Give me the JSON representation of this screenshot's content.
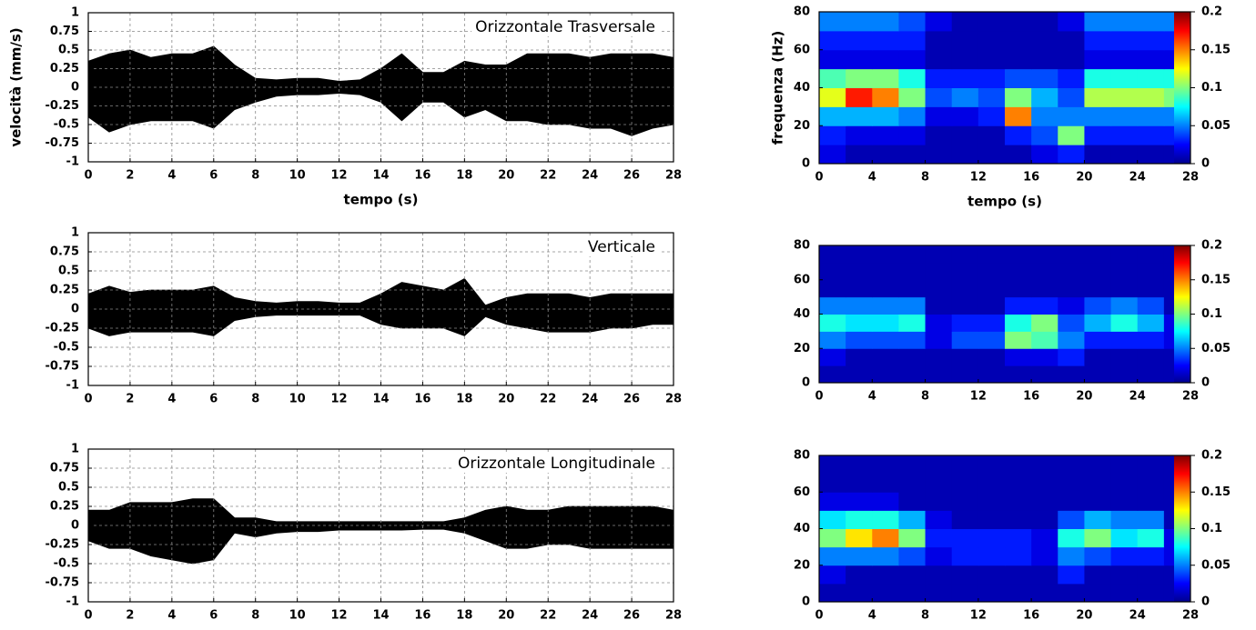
{
  "chart_data": [
    {
      "type": "band",
      "title": "Orizzontale Trasversale",
      "ylabel": "velocità (mm/s)",
      "xlabel": "tempo (s)",
      "color": "#000000",
      "grid": true,
      "x": [
        0,
        1,
        2,
        3,
        4,
        5,
        6,
        7,
        8,
        9,
        10,
        11,
        12,
        13,
        14,
        15,
        16,
        17,
        18,
        19,
        20,
        21,
        22,
        23,
        24,
        25,
        26,
        27,
        28
      ],
      "high": [
        0.35,
        0.45,
        0.5,
        0.4,
        0.45,
        0.45,
        0.55,
        0.3,
        0.12,
        0.1,
        0.12,
        0.12,
        0.08,
        0.1,
        0.25,
        0.45,
        0.2,
        0.2,
        0.35,
        0.3,
        0.3,
        0.45,
        0.45,
        0.45,
        0.4,
        0.45,
        0.45,
        0.45,
        0.4
      ],
      "low": [
        -0.4,
        -0.6,
        -0.5,
        -0.45,
        -0.45,
        -0.45,
        -0.55,
        -0.3,
        -0.2,
        -0.12,
        -0.1,
        -0.1,
        -0.08,
        -0.1,
        -0.2,
        -0.45,
        -0.2,
        -0.2,
        -0.4,
        -0.3,
        -0.45,
        -0.45,
        -0.5,
        -0.5,
        -0.55,
        -0.55,
        -0.65,
        -0.55,
        -0.5
      ],
      "xlim": [
        0,
        28
      ],
      "ylim": [
        -1,
        1
      ],
      "xticks": [
        0,
        2,
        4,
        6,
        8,
        10,
        12,
        14,
        16,
        18,
        20,
        22,
        24,
        26,
        28
      ],
      "yticks": [
        1,
        0.75,
        0.5,
        0.25,
        0,
        -0.25,
        -0.5,
        -0.75,
        -1
      ]
    },
    {
      "type": "band",
      "title": "Verticale",
      "color": "#000000",
      "grid": true,
      "x": [
        0,
        1,
        2,
        3,
        4,
        5,
        6,
        7,
        8,
        9,
        10,
        11,
        12,
        13,
        14,
        15,
        16,
        17,
        18,
        19,
        20,
        21,
        22,
        23,
        24,
        25,
        26,
        27,
        28
      ],
      "high": [
        0.2,
        0.3,
        0.22,
        0.25,
        0.25,
        0.25,
        0.3,
        0.15,
        0.1,
        0.08,
        0.1,
        0.1,
        0.08,
        0.08,
        0.2,
        0.35,
        0.3,
        0.25,
        0.4,
        0.05,
        0.15,
        0.2,
        0.2,
        0.2,
        0.15,
        0.2,
        0.2,
        0.2,
        0.2
      ],
      "low": [
        -0.25,
        -0.35,
        -0.3,
        -0.3,
        -0.3,
        -0.3,
        -0.35,
        -0.15,
        -0.1,
        -0.08,
        -0.08,
        -0.08,
        -0.08,
        -0.08,
        -0.2,
        -0.25,
        -0.25,
        -0.25,
        -0.35,
        -0.1,
        -0.2,
        -0.25,
        -0.3,
        -0.3,
        -0.3,
        -0.25,
        -0.25,
        -0.2,
        -0.2
      ],
      "xlim": [
        0,
        28
      ],
      "ylim": [
        -1,
        1
      ],
      "xticks": [
        0,
        2,
        4,
        6,
        8,
        10,
        12,
        14,
        16,
        18,
        20,
        22,
        24,
        26,
        28
      ],
      "yticks": [
        1,
        0.75,
        0.5,
        0.25,
        0,
        -0.25,
        -0.5,
        -0.75,
        -1
      ]
    },
    {
      "type": "band",
      "title": "Orizzontale Longitudinale",
      "color": "#000000",
      "grid": true,
      "x": [
        0,
        1,
        2,
        3,
        4,
        5,
        6,
        7,
        8,
        9,
        10,
        11,
        12,
        13,
        14,
        15,
        16,
        17,
        18,
        19,
        20,
        21,
        22,
        23,
        24,
        25,
        26,
        27,
        28
      ],
      "high": [
        0.2,
        0.2,
        0.3,
        0.3,
        0.3,
        0.35,
        0.35,
        0.1,
        0.1,
        0.05,
        0.05,
        0.05,
        0.05,
        0.05,
        0.05,
        0.05,
        0.05,
        0.05,
        0.1,
        0.2,
        0.25,
        0.2,
        0.2,
        0.25,
        0.25,
        0.25,
        0.25,
        0.25,
        0.2
      ],
      "low": [
        -0.2,
        -0.3,
        -0.3,
        -0.4,
        -0.45,
        -0.5,
        -0.45,
        -0.1,
        -0.15,
        -0.1,
        -0.08,
        -0.08,
        -0.06,
        -0.06,
        -0.06,
        -0.06,
        -0.05,
        -0.05,
        -0.1,
        -0.2,
        -0.3,
        -0.3,
        -0.25,
        -0.25,
        -0.3,
        -0.3,
        -0.3,
        -0.3,
        -0.3
      ],
      "xlim": [
        0,
        28
      ],
      "ylim": [
        -1,
        1
      ],
      "xticks": [
        0,
        2,
        4,
        6,
        8,
        10,
        12,
        14,
        16,
        18,
        20,
        22,
        24,
        26,
        28
      ],
      "yticks": [
        1,
        0.75,
        0.5,
        0.25,
        0,
        -0.25,
        -0.5,
        -0.75,
        -1
      ]
    },
    {
      "type": "heatmap",
      "ylabel": "frequenza (Hz)",
      "xlabel": "tempo (s)",
      "colormap": "jet",
      "xbins": [
        0,
        2,
        4,
        6,
        8,
        10,
        12,
        14,
        16,
        18,
        20,
        22,
        24,
        26,
        28
      ],
      "ybins": [
        0,
        10,
        20,
        30,
        40,
        50,
        60,
        70,
        80
      ],
      "z": [
        [
          0.02,
          0.01,
          0.01,
          0.01,
          0.01,
          0.01,
          0.01,
          0.01,
          0.02,
          0.03,
          0.01,
          0.01,
          0.01,
          0.01
        ],
        [
          0.03,
          0.02,
          0.02,
          0.02,
          0.01,
          0.01,
          0.01,
          0.03,
          0.04,
          0.1,
          0.03,
          0.03,
          0.03,
          0.03
        ],
        [
          0.06,
          0.06,
          0.06,
          0.05,
          0.02,
          0.02,
          0.03,
          0.15,
          0.05,
          0.05,
          0.05,
          0.05,
          0.05,
          0.05
        ],
        [
          0.12,
          0.17,
          0.15,
          0.1,
          0.04,
          0.05,
          0.04,
          0.1,
          0.06,
          0.04,
          0.11,
          0.11,
          0.11,
          0.1
        ],
        [
          0.09,
          0.1,
          0.1,
          0.08,
          0.03,
          0.03,
          0.03,
          0.04,
          0.04,
          0.03,
          0.08,
          0.08,
          0.08,
          0.08
        ],
        [
          0.02,
          0.02,
          0.02,
          0.02,
          0.01,
          0.01,
          0.01,
          0.01,
          0.01,
          0.01,
          0.02,
          0.02,
          0.02,
          0.02
        ],
        [
          0.03,
          0.03,
          0.03,
          0.03,
          0.01,
          0.01,
          0.01,
          0.01,
          0.01,
          0.01,
          0.03,
          0.03,
          0.03,
          0.03
        ],
        [
          0.05,
          0.05,
          0.05,
          0.04,
          0.02,
          0.01,
          0.01,
          0.01,
          0.01,
          0.02,
          0.05,
          0.05,
          0.05,
          0.05
        ]
      ],
      "zlim": [
        0,
        0.2
      ],
      "zticks": [
        0,
        0.05,
        0.1,
        0.15,
        0.2
      ],
      "xlim": [
        0,
        28
      ],
      "ylim": [
        0,
        80
      ],
      "xticks": [
        0,
        4,
        8,
        12,
        16,
        20,
        24,
        28
      ],
      "yticks": [
        0,
        20,
        40,
        60,
        80
      ]
    },
    {
      "type": "heatmap",
      "colormap": "jet",
      "xbins": [
        0,
        2,
        4,
        6,
        8,
        10,
        12,
        14,
        16,
        18,
        20,
        22,
        24,
        26,
        28
      ],
      "ybins": [
        0,
        10,
        20,
        30,
        40,
        50,
        60,
        70,
        80
      ],
      "z": [
        [
          0.01,
          0.01,
          0.01,
          0.01,
          0.01,
          0.01,
          0.01,
          0.01,
          0.01,
          0.01,
          0.01,
          0.01,
          0.01,
          0.01
        ],
        [
          0.02,
          0.01,
          0.01,
          0.01,
          0.01,
          0.01,
          0.01,
          0.02,
          0.02,
          0.03,
          0.01,
          0.01,
          0.01,
          0.01
        ],
        [
          0.05,
          0.04,
          0.04,
          0.04,
          0.02,
          0.04,
          0.04,
          0.1,
          0.09,
          0.05,
          0.03,
          0.03,
          0.03,
          0.02
        ],
        [
          0.08,
          0.07,
          0.07,
          0.08,
          0.02,
          0.03,
          0.03,
          0.08,
          0.1,
          0.04,
          0.06,
          0.08,
          0.06,
          0.02
        ],
        [
          0.05,
          0.05,
          0.05,
          0.05,
          0.01,
          0.01,
          0.01,
          0.03,
          0.03,
          0.02,
          0.04,
          0.05,
          0.04,
          0.01
        ],
        [
          0.01,
          0.01,
          0.01,
          0.01,
          0.01,
          0.01,
          0.01,
          0.01,
          0.01,
          0.01,
          0.01,
          0.01,
          0.01,
          0.01
        ],
        [
          0.01,
          0.01,
          0.01,
          0.01,
          0.01,
          0.01,
          0.01,
          0.01,
          0.01,
          0.01,
          0.01,
          0.01,
          0.01,
          0.01
        ],
        [
          0.01,
          0.01,
          0.01,
          0.01,
          0.01,
          0.01,
          0.01,
          0.01,
          0.01,
          0.01,
          0.01,
          0.01,
          0.01,
          0.01
        ]
      ],
      "zlim": [
        0,
        0.2
      ],
      "zticks": [
        0,
        0.05,
        0.1,
        0.15,
        0.2
      ],
      "xlim": [
        0,
        28
      ],
      "ylim": [
        0,
        80
      ],
      "xticks": [
        0,
        4,
        8,
        12,
        16,
        20,
        24,
        28
      ],
      "yticks": [
        0,
        20,
        40,
        60,
        80
      ]
    },
    {
      "type": "heatmap",
      "colormap": "jet",
      "xbins": [
        0,
        2,
        4,
        6,
        8,
        10,
        12,
        14,
        16,
        18,
        20,
        22,
        24,
        26,
        28
      ],
      "ybins": [
        0,
        10,
        20,
        30,
        40,
        50,
        60,
        70,
        80
      ],
      "z": [
        [
          0.01,
          0.01,
          0.01,
          0.01,
          0.01,
          0.01,
          0.01,
          0.01,
          0.01,
          0.01,
          0.01,
          0.01,
          0.01,
          0.01
        ],
        [
          0.02,
          0.01,
          0.01,
          0.01,
          0.01,
          0.01,
          0.01,
          0.01,
          0.01,
          0.03,
          0.01,
          0.01,
          0.01,
          0.01
        ],
        [
          0.05,
          0.05,
          0.05,
          0.04,
          0.02,
          0.03,
          0.03,
          0.03,
          0.02,
          0.05,
          0.04,
          0.03,
          0.03,
          0.02
        ],
        [
          0.1,
          0.13,
          0.15,
          0.1,
          0.03,
          0.03,
          0.03,
          0.03,
          0.02,
          0.08,
          0.1,
          0.07,
          0.08,
          0.02
        ],
        [
          0.07,
          0.08,
          0.08,
          0.06,
          0.02,
          0.01,
          0.01,
          0.01,
          0.01,
          0.04,
          0.06,
          0.05,
          0.05,
          0.01
        ],
        [
          0.02,
          0.02,
          0.02,
          0.01,
          0.01,
          0.01,
          0.01,
          0.01,
          0.01,
          0.01,
          0.01,
          0.01,
          0.01,
          0.01
        ],
        [
          0.01,
          0.01,
          0.01,
          0.01,
          0.01,
          0.01,
          0.01,
          0.01,
          0.01,
          0.01,
          0.01,
          0.01,
          0.01,
          0.01
        ],
        [
          0.01,
          0.01,
          0.01,
          0.01,
          0.01,
          0.01,
          0.01,
          0.01,
          0.01,
          0.01,
          0.01,
          0.01,
          0.01,
          0.01
        ]
      ],
      "zlim": [
        0,
        0.2
      ],
      "zticks": [
        0,
        0.05,
        0.1,
        0.15,
        0.2
      ],
      "xlim": [
        0,
        28
      ],
      "ylim": [
        0,
        80
      ],
      "xticks": [
        0,
        4,
        8,
        12,
        16,
        20,
        24,
        28
      ],
      "yticks": [
        0,
        20,
        40,
        60,
        80
      ]
    }
  ]
}
